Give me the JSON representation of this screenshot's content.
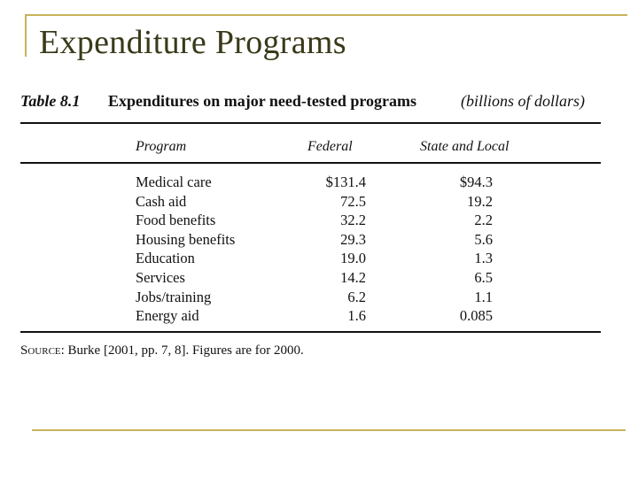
{
  "slide": {
    "title": "Expenditure Programs"
  },
  "table": {
    "label": "Table 8.1",
    "title": "Expenditures on major need-tested programs",
    "unit": "(billions of dollars)",
    "headers": {
      "program": "Program",
      "federal": "Federal",
      "state_local": "State and Local"
    },
    "rows": [
      {
        "program": "Medical care",
        "federal": "$131.4",
        "state_local": "$94.3"
      },
      {
        "program": "Cash aid",
        "federal": "72.5",
        "state_local": "19.2"
      },
      {
        "program": "Food benefits",
        "federal": "32.2",
        "state_local": "2.2"
      },
      {
        "program": "Housing benefits",
        "federal": "29.3",
        "state_local": "5.6"
      },
      {
        "program": "Education",
        "federal": "19.0",
        "state_local": "1.3"
      },
      {
        "program": "Services",
        "federal": "14.2",
        "state_local": "6.5"
      },
      {
        "program": "Jobs/training",
        "federal": "6.2",
        "state_local": "1.1"
      },
      {
        "program": "Energy aid",
        "federal": "1.6",
        "state_local": "0.085"
      }
    ],
    "source_label": "Source:",
    "source_text": "Burke [2001, pp. 7, 8]. Figures are for 2000."
  },
  "colors": {
    "frame": "#c8b45a",
    "title": "#3a3a1a"
  }
}
